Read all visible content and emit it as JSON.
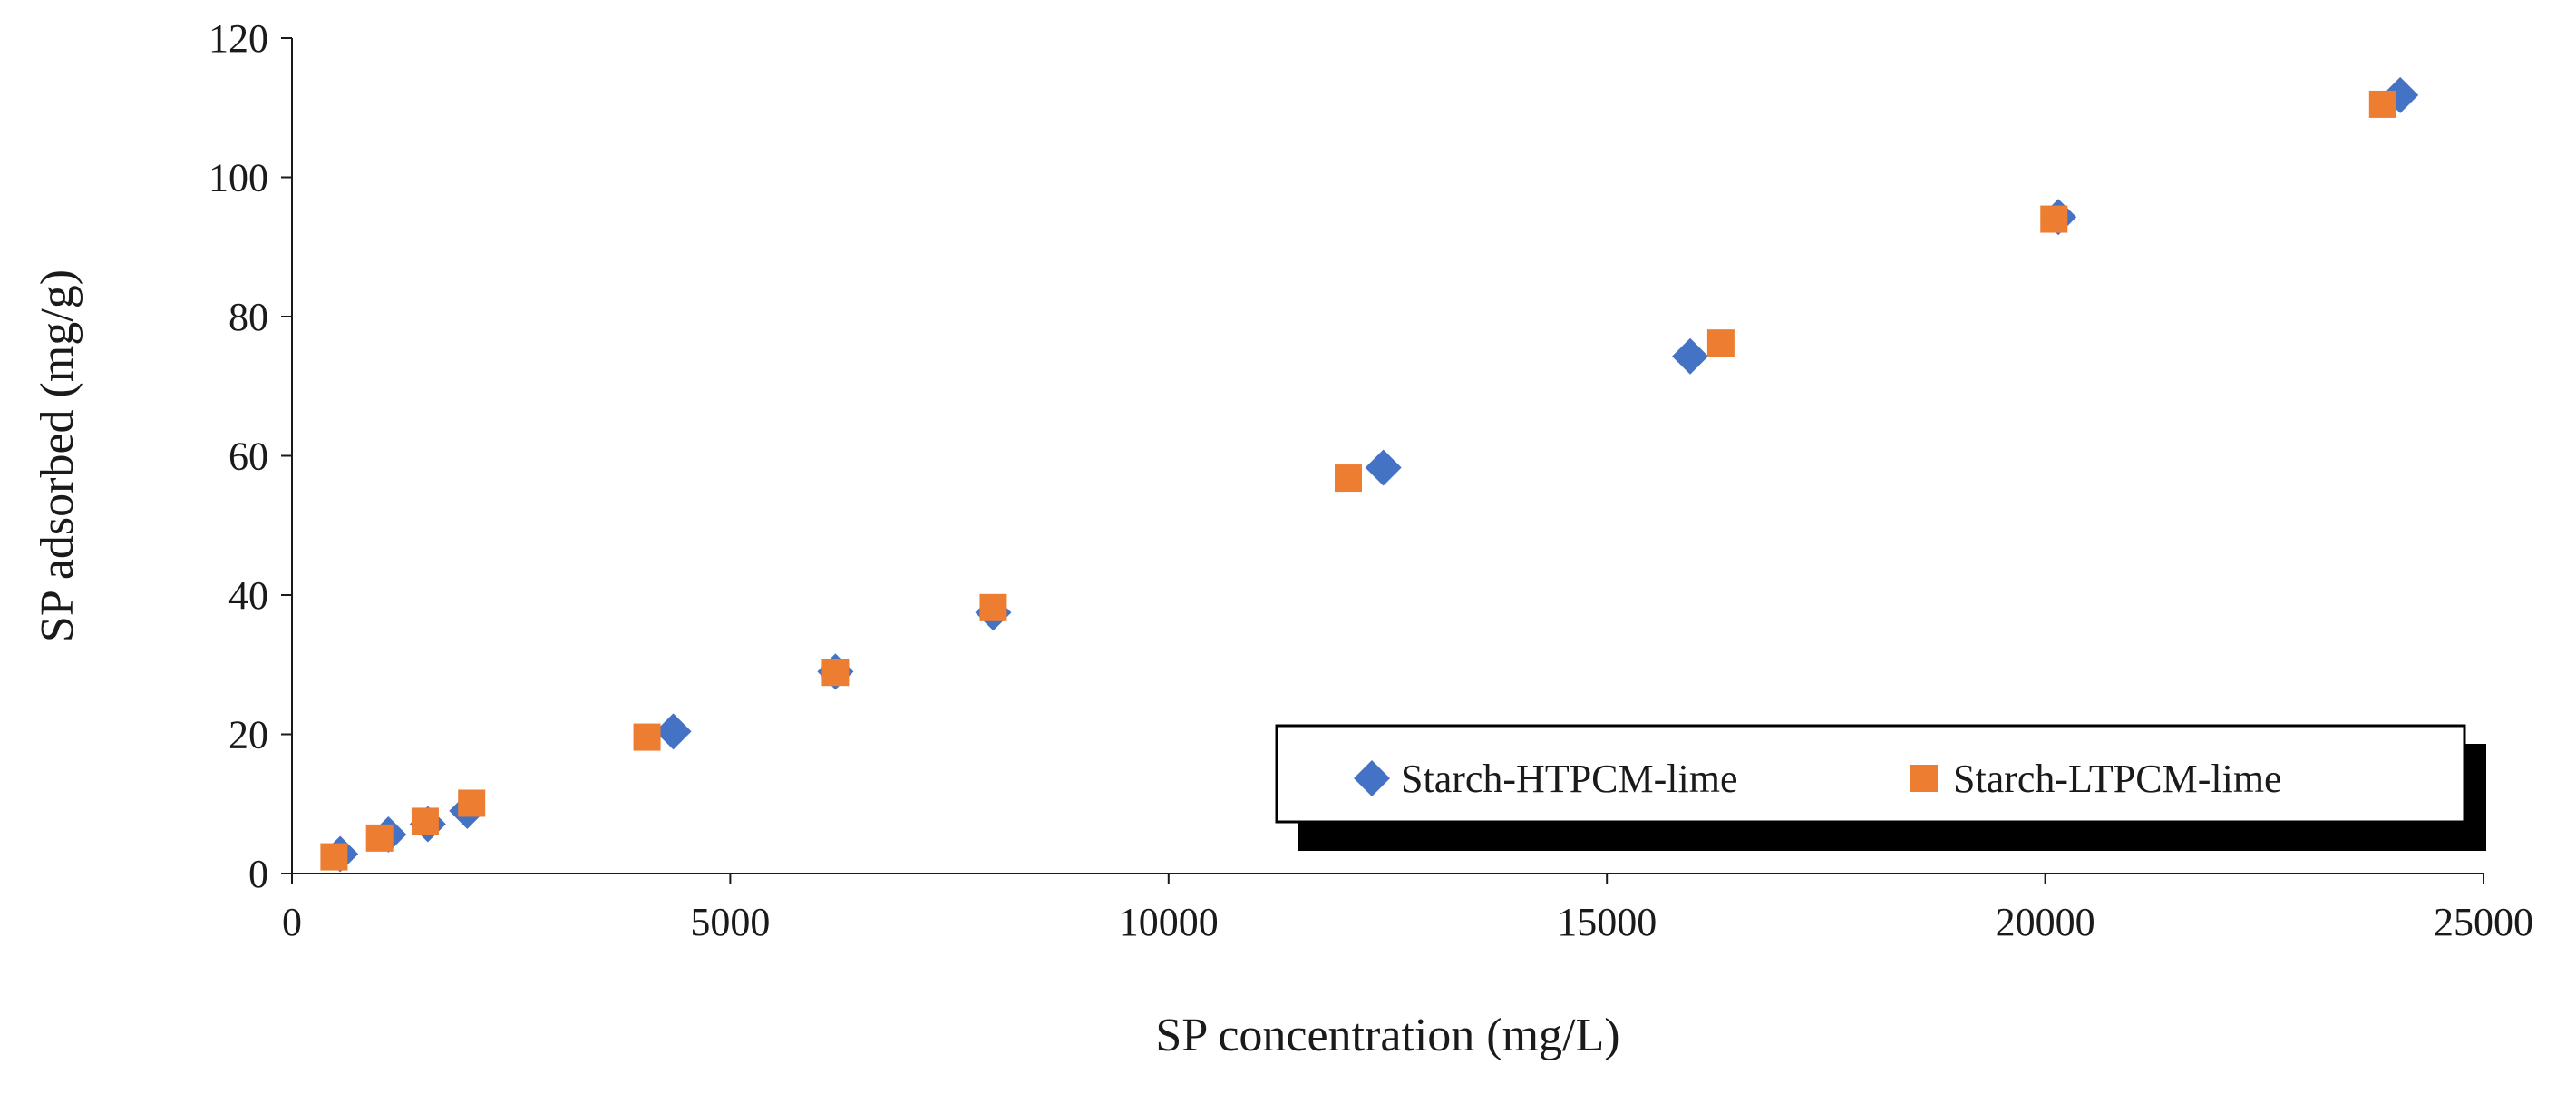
{
  "chart_data": {
    "type": "scatter",
    "title": "",
    "xlabel": "SP concentration (mg/L)",
    "ylabel": "SP adsorbed (mg/g)",
    "xlim": [
      0,
      25000
    ],
    "ylim": [
      0,
      120
    ],
    "xticks": [
      0,
      5000,
      10000,
      15000,
      20000,
      25000
    ],
    "yticks": [
      0,
      20,
      40,
      60,
      80,
      100,
      120
    ],
    "grid": false,
    "legend_position": "bottom-right",
    "series": [
      {
        "name": "Starch-HTPCM-lime",
        "marker": "diamond",
        "color": "#4472C4",
        "points": [
          [
            550,
            2.8
          ],
          [
            1100,
            5.6
          ],
          [
            1550,
            7.1
          ],
          [
            2000,
            9.0
          ],
          [
            4350,
            20.4
          ],
          [
            6200,
            29.0
          ],
          [
            8000,
            37.5
          ],
          [
            12450,
            58.3
          ],
          [
            15950,
            74.3
          ],
          [
            20150,
            94.3
          ],
          [
            24050,
            111.8
          ]
        ]
      },
      {
        "name": "Starch-LTPCM-lime",
        "marker": "square",
        "color": "#ED7D31",
        "points": [
          [
            480,
            2.4
          ],
          [
            1000,
            5.1
          ],
          [
            1520,
            7.5
          ],
          [
            2050,
            10.1
          ],
          [
            4050,
            19.6
          ],
          [
            6200,
            28.9
          ],
          [
            8000,
            38.2
          ],
          [
            12050,
            56.8
          ],
          [
            16300,
            76.2
          ],
          [
            20100,
            94.0
          ],
          [
            23850,
            110.5
          ]
        ]
      }
    ]
  }
}
